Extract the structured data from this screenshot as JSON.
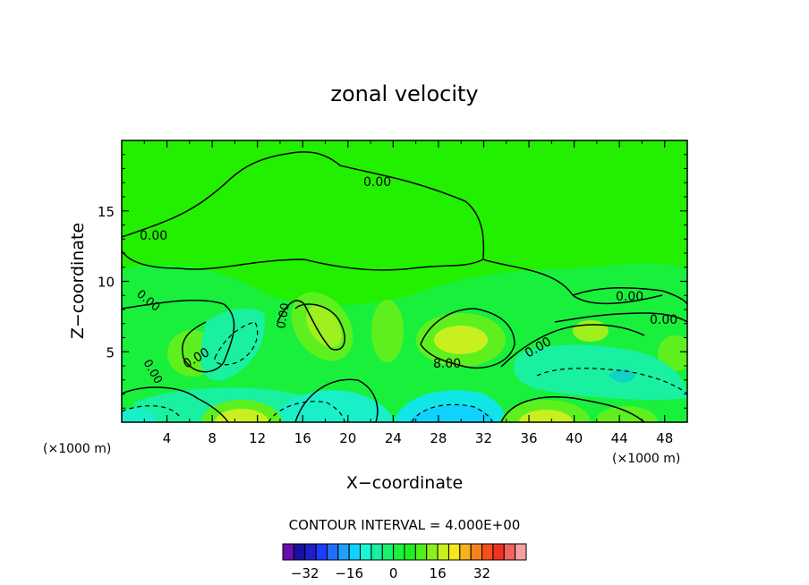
{
  "chart_data": {
    "type": "heatmap",
    "title": "zonal velocity",
    "xlabel": "X−coordinate",
    "ylabel": "Z−coordinate",
    "x_unit_left": "(×1000 m)",
    "x_unit_right": "(×1000 m)",
    "xlim": [
      0,
      50
    ],
    "ylim": [
      0,
      20
    ],
    "x_ticks": [
      4,
      8,
      12,
      16,
      20,
      24,
      28,
      32,
      36,
      40,
      44,
      48
    ],
    "y_ticks": [
      5,
      10,
      15
    ],
    "contour_interval_text": "CONTOUR INTERVAL = 4.000E+00",
    "contour_labels": [
      "0.00",
      "0.00",
      "0.00",
      "0.00",
      "0.00",
      "0.00",
      "0.00",
      "0.00",
      "0.00",
      "8.00"
    ],
    "colorbar": {
      "levels": [
        -36,
        -32,
        -28,
        -24,
        -20,
        -16,
        -12,
        -8,
        -4,
        0,
        4,
        8,
        12,
        16,
        20,
        24,
        28,
        32,
        36
      ],
      "tick_labels": [
        "−32",
        "−16",
        "0",
        "16",
        "32"
      ],
      "tick_values": [
        -32,
        -16,
        0,
        16,
        32
      ],
      "colors": [
        "#6a0dad",
        "#1a0fa0",
        "#1e1ec8",
        "#1e3cff",
        "#1e6eff",
        "#1ea0ff",
        "#10d2ff",
        "#19f5d2",
        "#19f0a0",
        "#19f06e",
        "#1ef03c",
        "#1ef01e",
        "#50f01e",
        "#8cf01e",
        "#c8f01e",
        "#f5e61e",
        "#f5b41e",
        "#f5821e",
        "#f5501e",
        "#f0321e",
        "#f06464",
        "#f5a0a0"
      ]
    },
    "grid": false,
    "legend": "colorbar-bottom"
  }
}
